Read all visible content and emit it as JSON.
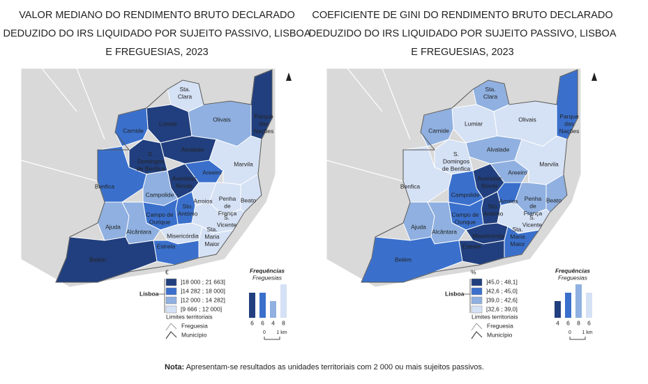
{
  "maps": [
    {
      "title": [
        "VALOR MEDIANO DO RENDIMENTO BRUTO DECLARADO",
        "DEDUZIDO DO IRS LIQUIDADO POR SUJEITO PASSIVO, LISBOA",
        "E FREGUESIAS, 2023"
      ],
      "unit": "€",
      "classes": [
        {
          "label": "]18 000 ; 21 663]",
          "color": "#213f7e"
        },
        {
          "label": "]14 282 ; 18 000]",
          "color": "#3a70cc"
        },
        {
          "label": "]12 000 ; 14 282]",
          "color": "#8fb0e0"
        },
        {
          "label": "[9 666 ; 12 000]",
          "color": "#d5e1f4"
        }
      ],
      "frequencies": {
        "title": "Frequências",
        "subtitle": "Freguesias",
        "values": [
          6,
          6,
          4,
          8
        ]
      },
      "freguesia_class": [
        3,
        0,
        2,
        0,
        1,
        0,
        0,
        1,
        3,
        1,
        0,
        2,
        3,
        3,
        3,
        1,
        1,
        3,
        2,
        2,
        3,
        3,
        1,
        0
      ]
    },
    {
      "title": [
        "COEFICIENTE DE GINI DO RENDIMENTO BRUTO DECLARADO",
        "DEDUZIDO DO IRS LIQUIDADO POR SUJEITO PASSIVO, LISBOA",
        "E FREGUESIAS, 2023"
      ],
      "unit": "%",
      "classes": [
        {
          "label": "]45,0 ; 48,1]",
          "color": "#213f7e"
        },
        {
          "label": "]42,6 ; 45,0]",
          "color": "#3a70cc"
        },
        {
          "label": "]39,0 ; 42,6]",
          "color": "#8fb0e0"
        },
        {
          "label": "[32,6 ; 39,0]",
          "color": "#d5e1f4"
        }
      ],
      "frequencies": {
        "title": "Frequências",
        "subtitle": "Freguesias",
        "values": [
          4,
          6,
          8,
          6
        ]
      },
      "freguesia_class": [
        2,
        3,
        3,
        1,
        2,
        2,
        3,
        2,
        3,
        3,
        0,
        1,
        1,
        2,
        2,
        0,
        1,
        3,
        2,
        2,
        0,
        1,
        0,
        1
      ]
    }
  ],
  "freguesias": [
    {
      "label": [
        "Sta.",
        "Clara"
      ]
    },
    {
      "label": [
        "Lumiar"
      ]
    },
    {
      "label": [
        "Olivais"
      ]
    },
    {
      "label": [
        "Parque",
        "das",
        "Nações"
      ]
    },
    {
      "label": [
        "Carnide"
      ]
    },
    {
      "label": [
        "Alvalade"
      ]
    },
    {
      "label": [
        "S.",
        "Domingos",
        "de Benfica"
      ]
    },
    {
      "label": [
        "Areeiro"
      ]
    },
    {
      "label": [
        "Marvila"
      ]
    },
    {
      "label": [
        "Benfica"
      ]
    },
    {
      "label": [
        "Avenidas",
        "Novas"
      ]
    },
    {
      "label": [
        "Campolide"
      ]
    },
    {
      "label": [
        "Arroios"
      ]
    },
    {
      "label": [
        "Penha",
        "de",
        "França"
      ]
    },
    {
      "label": [
        "Beato"
      ]
    },
    {
      "label": [
        "Sto.",
        "António"
      ]
    },
    {
      "label": [
        "Campo de",
        "Ourique"
      ]
    },
    {
      "label": [
        "S.",
        "Vicente"
      ]
    },
    {
      "label": [
        "Ajuda"
      ]
    },
    {
      "label": [
        "Alcântara"
      ]
    },
    {
      "label": [
        "Misericórdia"
      ]
    },
    {
      "label": [
        "Sta.",
        "Maria",
        "Maior"
      ]
    },
    {
      "label": [
        "Estrela"
      ]
    },
    {
      "label": [
        "Belém"
      ]
    }
  ],
  "legend": {
    "lisboa": "Lisboa",
    "limits_title": "Limites territoriais",
    "freguesia": "Freguesia",
    "municipio": "Município",
    "scale_start": "0",
    "scale_end": "1 km"
  },
  "note": {
    "bold": "Nota:",
    "text": "Apresentam-se resultados as unidades territoriais com 2 000 ou mais sujeitos passivos."
  }
}
